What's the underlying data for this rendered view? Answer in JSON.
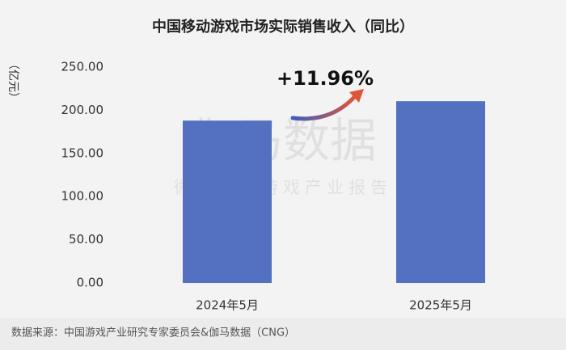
{
  "chart_data": {
    "type": "bar",
    "title": "中国移动游戏市场实际销售收入（同比）",
    "y_label": "（亿元）",
    "categories": [
      "2024年5月",
      "2025年5月"
    ],
    "values": [
      188,
      210.5
    ],
    "color": "#5470c0",
    "ylim": [
      0,
      250
    ],
    "yticks": [
      {
        "value": 0,
        "label": "0.00"
      },
      {
        "value": 50,
        "label": "50.00"
      },
      {
        "value": 100,
        "label": "100.00"
      },
      {
        "value": 150,
        "label": "150.00"
      },
      {
        "value": 200,
        "label": "200.00"
      },
      {
        "value": 250,
        "label": "250.00"
      }
    ],
    "annotation": "+11.96%",
    "watermark": "伽马数据",
    "watermark_subtitle": "微信号：游戏产业报告",
    "source": "数据来源：中国游戏产业研究专家委员会&伽马数据（CNG）"
  }
}
